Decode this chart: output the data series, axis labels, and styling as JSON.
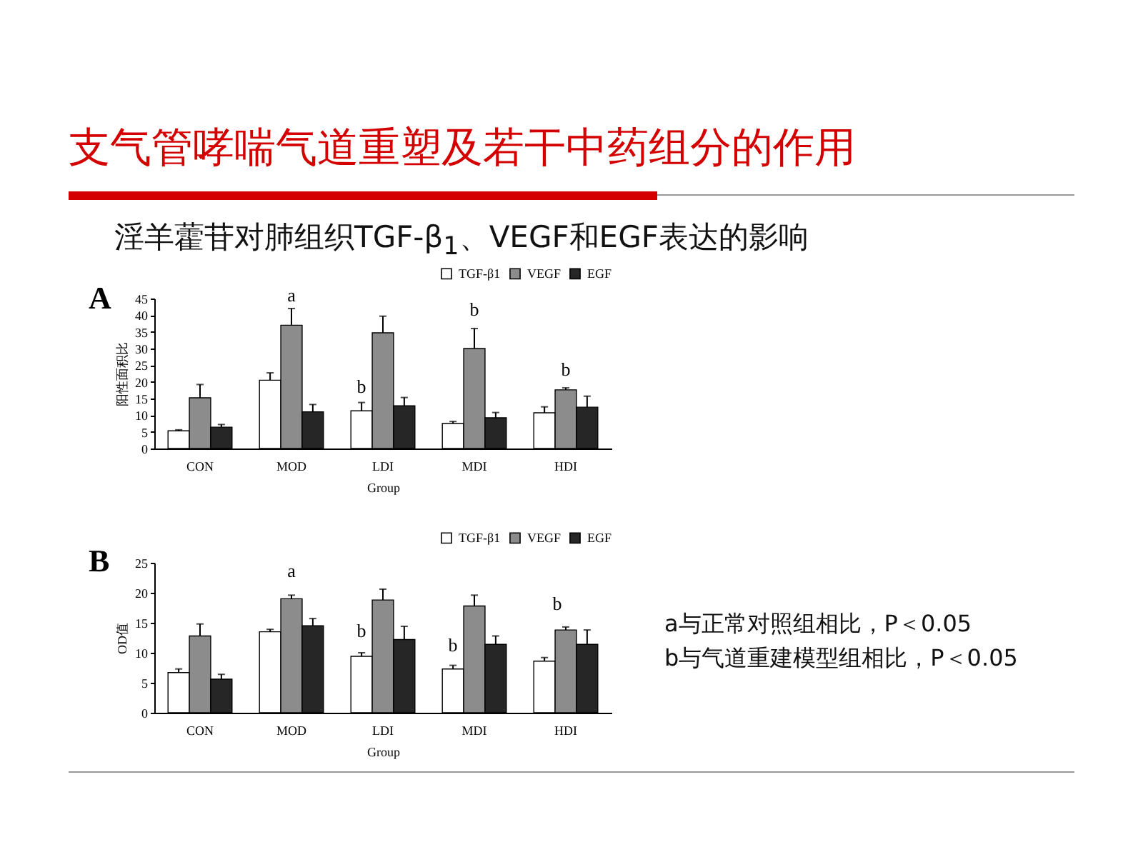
{
  "chart_data": [
    {
      "type": "bar",
      "title": "支气管哮喘气道重塑及若干中药组分的作用",
      "subtitle": "淫羊藿苷对肺组织TGF-β$_{1}$、VEGF和EGF表达的影响",
      "xlabel": "Group",
      "ylabel": "阳性面积比",
      "categories": [
        "CON",
        "MOD",
        "LDI",
        "MDI",
        "HDI"
      ],
      "series": [
        {
          "name": "TGF-β1",
          "color": "#ffffff",
          "values": [
            5.3,
            20.5,
            11.3,
            7.5,
            10.7
          ],
          "errors": [
            [
              5.3,
              5.6
            ],
            [
              20.5,
              22.7
            ],
            [
              11.3,
              13.8
            ],
            [
              7.5,
              8.1
            ],
            [
              10.7,
              12.5
            ]
          ]
        },
        {
          "name": "VEGF",
          "color": "#8c8c8c",
          "values": [
            15.2,
            37,
            34.7,
            30,
            17.6
          ],
          "errors": [
            [
              15.2,
              19.2
            ],
            [
              37,
              42
            ],
            [
              34.7,
              39.7
            ],
            [
              30,
              36
            ],
            [
              17.6,
              18.2
            ]
          ]
        },
        {
          "name": "EGF",
          "color": "#262626",
          "values": [
            6.4,
            11,
            12.8,
            9.2,
            12.4
          ],
          "errors": [
            [
              6.4,
              7.2
            ],
            [
              11,
              13.2
            ],
            [
              12.8,
              15.3
            ],
            [
              9.2,
              10.8
            ],
            [
              12.4,
              15.7
            ]
          ]
        }
      ],
      "ylim": [
        0,
        45
      ],
      "yticks": [
        0,
        5,
        10,
        15,
        20,
        25,
        30,
        35,
        40,
        45
      ],
      "grid": false,
      "legend": "top right",
      "annotations": [
        "A",
        "a",
        "b",
        "b",
        "b"
      ]
    },
    {
      "type": "bar",
      "xlabel": "Group",
      "ylabel": "OD值",
      "categories": [
        "CON",
        "MOD",
        "LDI",
        "MDI",
        "HDI"
      ],
      "series": [
        {
          "name": "TGF-β1",
          "color": "#ffffff",
          "values": [
            6.7,
            13.5,
            9.4,
            7.3,
            8.6
          ],
          "errors": [
            [
              6.7,
              7.3
            ],
            [
              13.5,
              13.9
            ],
            [
              9.4,
              10
            ],
            [
              7.3,
              7.9
            ],
            [
              8.6,
              9.2
            ]
          ]
        },
        {
          "name": "VEGF",
          "color": "#8c8c8c",
          "values": [
            12.8,
            19,
            18.8,
            17.8,
            13.8
          ],
          "errors": [
            [
              12.8,
              14.8
            ],
            [
              19,
              19.6
            ],
            [
              18.8,
              20.6
            ],
            [
              17.8,
              19.6
            ],
            [
              13.8,
              14.3
            ]
          ]
        },
        {
          "name": "EGF",
          "color": "#262626",
          "values": [
            5.6,
            14.5,
            12.2,
            11.4,
            11.4
          ],
          "errors": [
            [
              5.6,
              6.4
            ],
            [
              14.5,
              15.7
            ],
            [
              12.2,
              14.4
            ],
            [
              11.4,
              12.8
            ],
            [
              11.4,
              13.8
            ]
          ]
        }
      ],
      "ylim": [
        0,
        25
      ],
      "yticks": [
        0,
        5,
        10,
        15,
        20,
        25
      ],
      "grid": false,
      "legend": "top right",
      "annotations": [
        "B",
        "a",
        "b",
        "b",
        "b",
        "a与正常对照组相比，P＜0.05",
        "b与气道重建模型组相比，P＜0.05"
      ]
    }
  ]
}
